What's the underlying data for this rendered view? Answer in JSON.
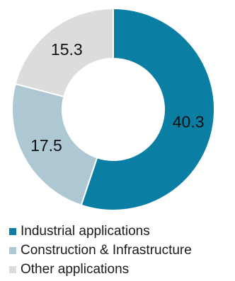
{
  "chart_data": {
    "type": "pie",
    "donut": true,
    "categories": [
      "Industrial applications",
      "Construction & Infrastructure",
      "Other applications"
    ],
    "values": [
      40.3,
      17.5,
      15.3
    ],
    "data_labels": [
      "40.3",
      "17.5",
      "15.3"
    ],
    "colors": [
      "#0b7ea3",
      "#aec8d3",
      "#dcdcdc"
    ],
    "start": "top, clockwise",
    "legend": {
      "position": "bottom",
      "entries": [
        "Industrial applications",
        "Construction & Infrastructure",
        "Other applications"
      ]
    }
  }
}
